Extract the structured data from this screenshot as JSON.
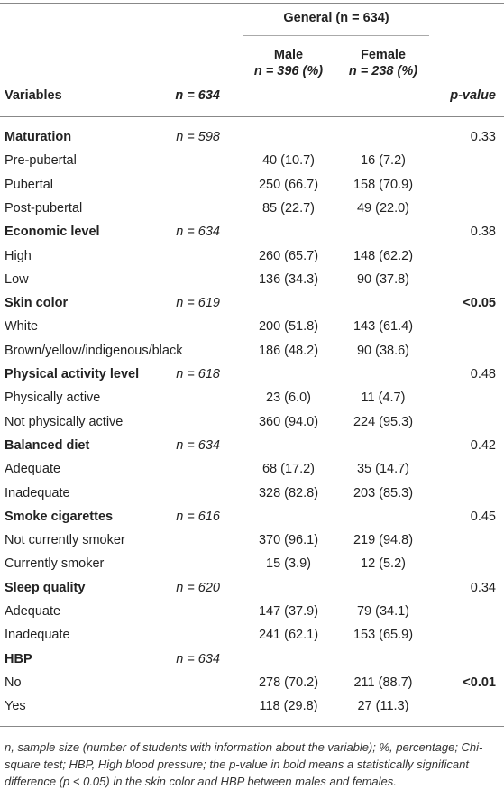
{
  "header": {
    "group_label": "General",
    "group_n": "(n = 634)",
    "male_label": "Male",
    "male_n": "n = 396 (%)",
    "female_label": "Female",
    "female_n": "n = 238 (%)",
    "variables_label": "Variables",
    "n_label": "n = 634",
    "pvalue_label": "p-value"
  },
  "rows": [
    {
      "var": "Maturation",
      "bold": true,
      "n": "n = 598",
      "male": "",
      "female": "",
      "p": "0.33",
      "pbold": false
    },
    {
      "var": "Pre-pubertal",
      "bold": false,
      "n": "",
      "male": "40 (10.7)",
      "female": "16 (7.2)",
      "p": "",
      "pbold": false
    },
    {
      "var": "Pubertal",
      "bold": false,
      "n": "",
      "male": "250 (66.7)",
      "female": "158 (70.9)",
      "p": "",
      "pbold": false
    },
    {
      "var": "Post-pubertal",
      "bold": false,
      "n": "",
      "male": "85 (22.7)",
      "female": "49 (22.0)",
      "p": "",
      "pbold": false
    },
    {
      "var": "Economic level",
      "bold": true,
      "n": "n = 634",
      "male": "",
      "female": "",
      "p": "0.38",
      "pbold": false
    },
    {
      "var": "High",
      "bold": false,
      "n": "",
      "male": "260 (65.7)",
      "female": "148 (62.2)",
      "p": "",
      "pbold": false
    },
    {
      "var": "Low",
      "bold": false,
      "n": "",
      "male": "136 (34.3)",
      "female": "90 (37.8)",
      "p": "",
      "pbold": false
    },
    {
      "var": "Skin color",
      "bold": true,
      "n": "n = 619",
      "male": "",
      "female": "",
      "p": "<0.05",
      "pbold": true
    },
    {
      "var": "White",
      "bold": false,
      "n": "",
      "male": "200 (51.8)",
      "female": "143 (61.4)",
      "p": "",
      "pbold": false
    },
    {
      "var": "Brown/yellow/indigenous/black",
      "bold": false,
      "n": "",
      "male": "186 (48.2)",
      "female": "90 (38.6)",
      "p": "",
      "pbold": false
    },
    {
      "var": "Physical activity level",
      "bold": true,
      "n": "n = 618",
      "male": "",
      "female": "",
      "p": "0.48",
      "pbold": false
    },
    {
      "var": "Physically active",
      "bold": false,
      "n": "",
      "male": "23 (6.0)",
      "female": "11 (4.7)",
      "p": "",
      "pbold": false
    },
    {
      "var": "Not physically active",
      "bold": false,
      "n": "",
      "male": "360 (94.0)",
      "female": "224 (95.3)",
      "p": "",
      "pbold": false
    },
    {
      "var": "Balanced diet",
      "bold": true,
      "n": "n = 634",
      "male": "",
      "female": "",
      "p": "0.42",
      "pbold": false
    },
    {
      "var": "Adequate",
      "bold": false,
      "n": "",
      "male": "68 (17.2)",
      "female": "35 (14.7)",
      "p": "",
      "pbold": false
    },
    {
      "var": "Inadequate",
      "bold": false,
      "n": "",
      "male": "328 (82.8)",
      "female": "203 (85.3)",
      "p": "",
      "pbold": false
    },
    {
      "var": "Smoke cigarettes",
      "bold": true,
      "n": "n = 616",
      "male": "",
      "female": "",
      "p": "0.45",
      "pbold": false
    },
    {
      "var": "Not currently smoker",
      "bold": false,
      "n": "",
      "male": "370 (96.1)",
      "female": "219 (94.8)",
      "p": "",
      "pbold": false
    },
    {
      "var": "Currently smoker",
      "bold": false,
      "n": "",
      "male": "15 (3.9)",
      "female": "12 (5.2)",
      "p": "",
      "pbold": false
    },
    {
      "var": "Sleep quality",
      "bold": true,
      "n": "n = 620",
      "male": "",
      "female": "",
      "p": "0.34",
      "pbold": false
    },
    {
      "var": "Adequate",
      "bold": false,
      "n": "",
      "male": "147 (37.9)",
      "female": "79 (34.1)",
      "p": "",
      "pbold": false
    },
    {
      "var": "Inadequate",
      "bold": false,
      "n": "",
      "male": "241 (62.1)",
      "female": "153 (65.9)",
      "p": "",
      "pbold": false
    },
    {
      "var": "HBP",
      "bold": true,
      "n": "n = 634",
      "male": "",
      "female": "",
      "p": "",
      "pbold": false
    },
    {
      "var": "No",
      "bold": false,
      "n": "",
      "male": "278 (70.2)",
      "female": "211 (88.7)",
      "p": "<0.01",
      "pbold": true
    },
    {
      "var": "Yes",
      "bold": false,
      "n": "",
      "male": "118 (29.8)",
      "female": "27 (11.3)",
      "p": "",
      "pbold": false
    }
  ],
  "footnote": "n, sample size (number of students with information about the variable); %, percentage; Chi-square test; HBP, High blood pressure; the p-value in bold means a statistically significant difference (p < 0.05) in the skin color and HBP between males and females."
}
